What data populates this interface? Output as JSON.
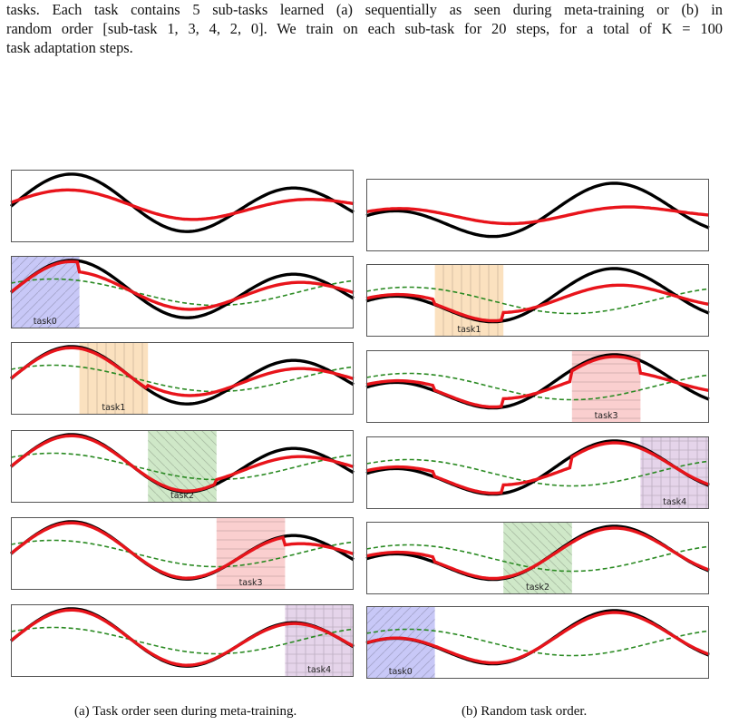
{
  "paragraph": {
    "line1": "tasks. Each task contains 5 sub-tasks learned (a) sequentially as seen during meta-training or (b) in",
    "line2": "random order [sub-task 1, 3, 4, 2, 0]. We train on each sub-task for 20 steps, for a total of K = 100",
    "line3": "task adaptation steps."
  },
  "colors": {
    "truth": "#000000",
    "prediction": "#e8141b",
    "prior": "#2a8a22",
    "task0": "#9a9af0",
    "task1": "#f8c88a",
    "task2": "#a8d69a",
    "task3": "#f6a7a7",
    "task4": "#cfb1d9"
  },
  "column_a": {
    "caption": "(a) Task order seen during meta-training.",
    "panels": [
      {
        "task": null,
        "label": ""
      },
      {
        "task": 0,
        "label": "task0"
      },
      {
        "task": 1,
        "label": "task1"
      },
      {
        "task": 2,
        "label": "task2"
      },
      {
        "task": 3,
        "label": "task3"
      },
      {
        "task": 4,
        "label": "task4"
      }
    ]
  },
  "column_b": {
    "caption": "(b) Random task order.",
    "panels": [
      {
        "task": null,
        "label": ""
      },
      {
        "task": 1,
        "label": "task1"
      },
      {
        "task": 3,
        "label": "task3"
      },
      {
        "task": 4,
        "label": "task4"
      },
      {
        "task": 2,
        "label": "task2"
      },
      {
        "task": 0,
        "label": "task0"
      }
    ]
  }
}
